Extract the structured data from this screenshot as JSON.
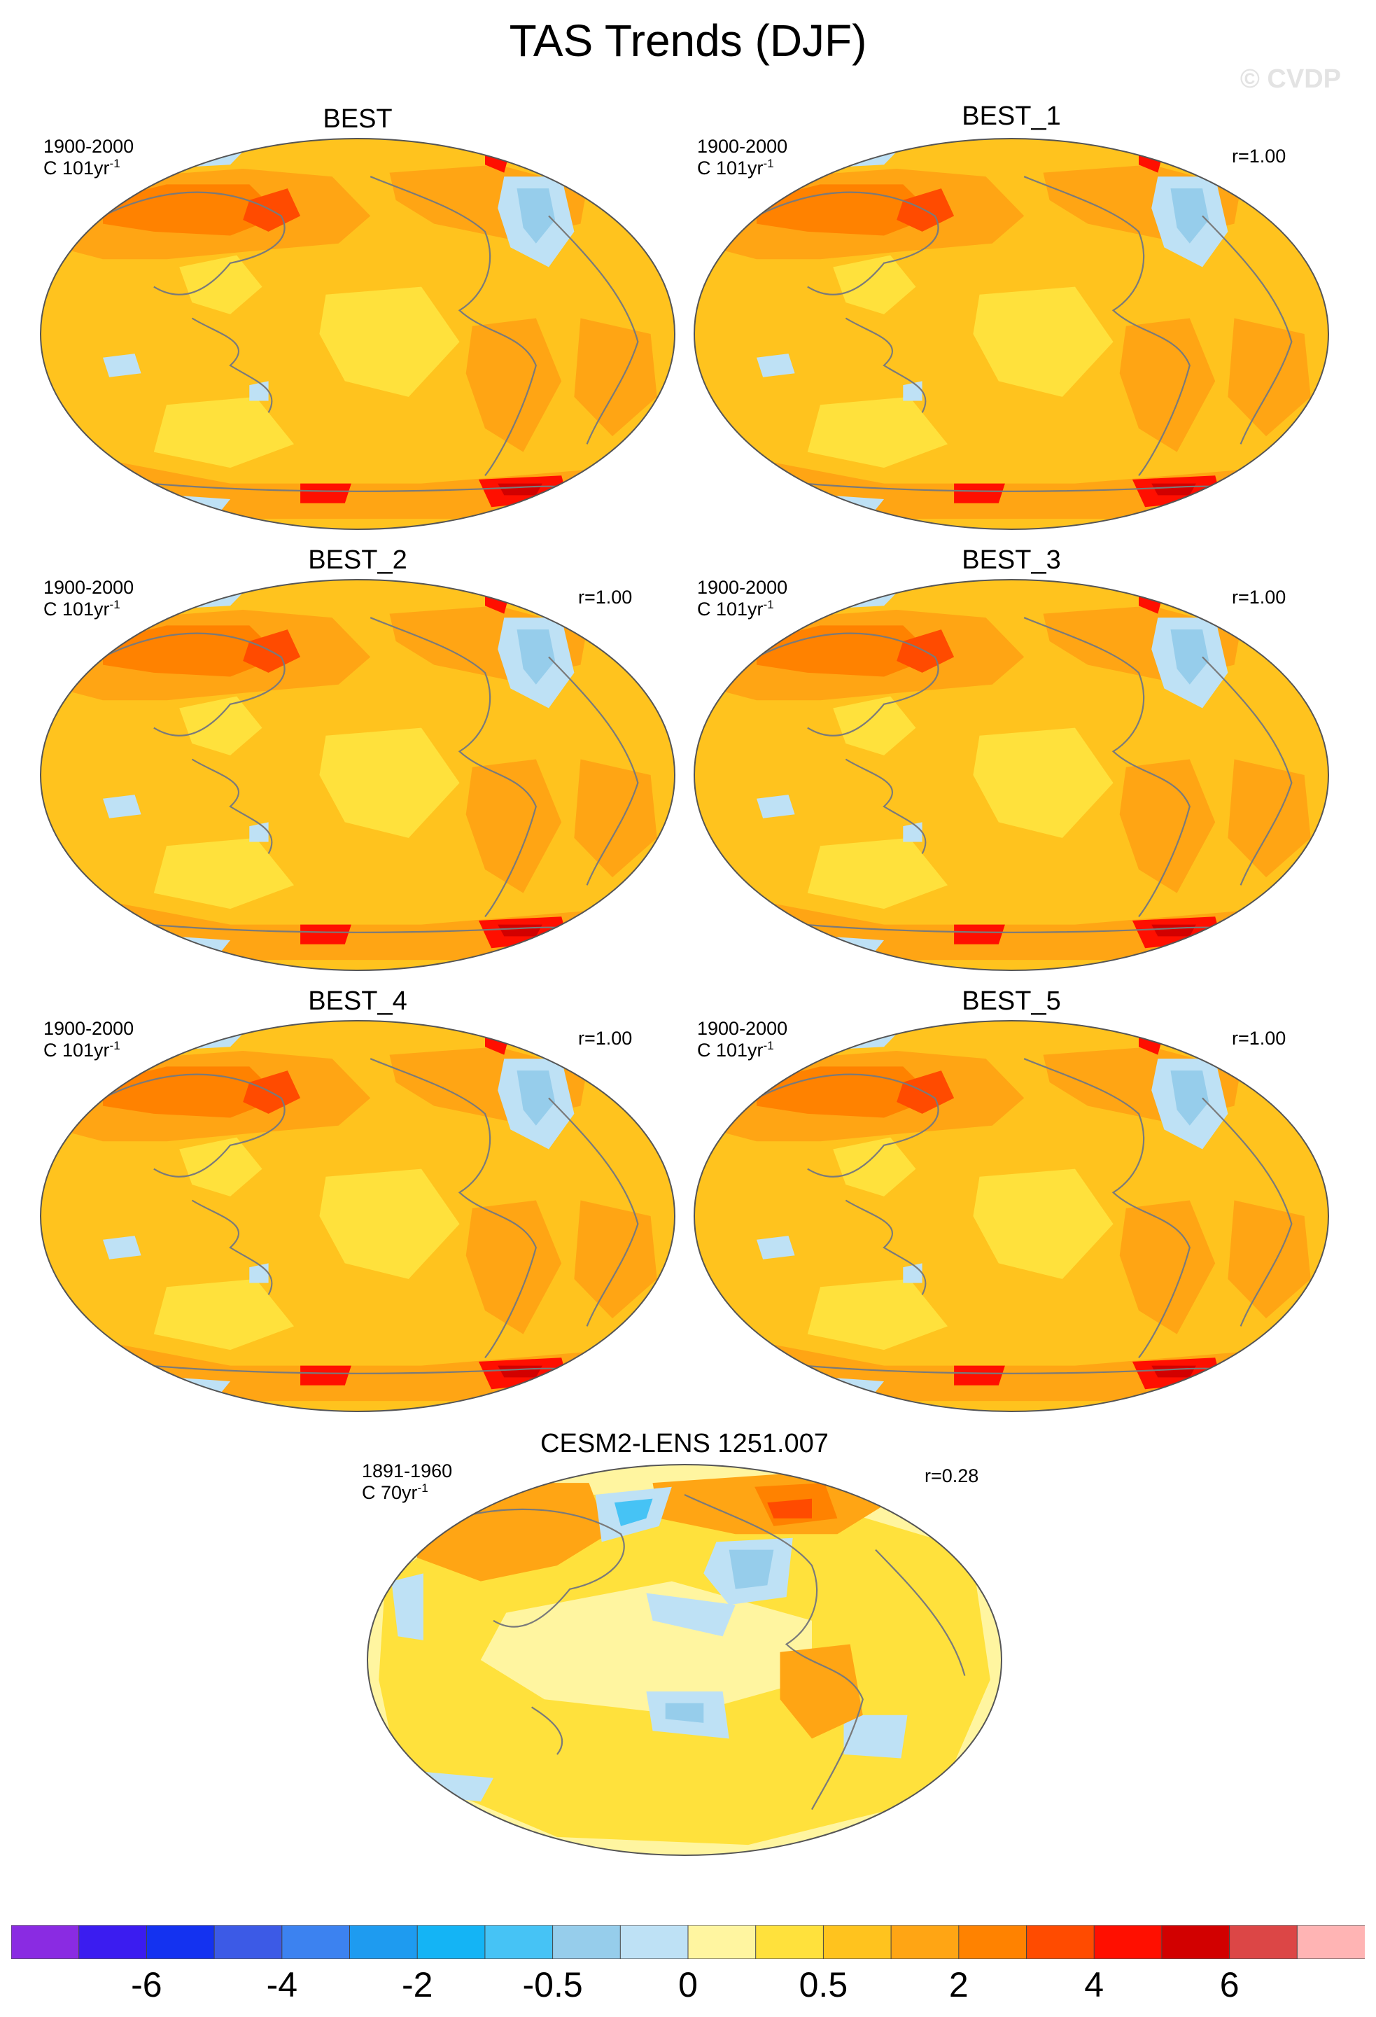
{
  "title": "TAS Trends (DJF)",
  "watermark": "© CVDP",
  "panels": [
    {
      "title": "BEST",
      "period": "1900-2000",
      "units": "C 101yr",
      "units_sup": "-1",
      "r": "",
      "variant": "obs"
    },
    {
      "title": "BEST_1",
      "period": "1900-2000",
      "units": "C 101yr",
      "units_sup": "-1",
      "r": "r=1.00",
      "variant": "obs"
    },
    {
      "title": "BEST_2",
      "period": "1900-2000",
      "units": "C 101yr",
      "units_sup": "-1",
      "r": "r=1.00",
      "variant": "obs"
    },
    {
      "title": "BEST_3",
      "period": "1900-2000",
      "units": "C 101yr",
      "units_sup": "-1",
      "r": "r=1.00",
      "variant": "obs"
    },
    {
      "title": "BEST_4",
      "period": "1900-2000",
      "units": "C 101yr",
      "units_sup": "-1",
      "r": "r=1.00",
      "variant": "obs"
    },
    {
      "title": "BEST_5",
      "period": "1900-2000",
      "units": "C 101yr",
      "units_sup": "-1",
      "r": "r=1.00",
      "variant": "obs"
    },
    {
      "title": "CESM2-LENS 1251.007",
      "period": "1891-1960",
      "units": "C 70yr",
      "units_sup": "-1",
      "r": "r=0.28",
      "variant": "model"
    }
  ],
  "colorbar": {
    "colors": [
      "#8a2be2",
      "#3b1cf0",
      "#1432f0",
      "#3c5ae6",
      "#3c82f0",
      "#1e9bf0",
      "#14b4f5",
      "#46c3f5",
      "#96cdeb",
      "#bee1f5",
      "#fff5a0",
      "#ffe13c",
      "#ffc31e",
      "#ffa514",
      "#ff8200",
      "#ff4b00",
      "#ff0f00",
      "#d20000",
      "#dc4646",
      "#ffb4b4"
    ],
    "labels": [
      {
        "text": "-6",
        "boundary": 2
      },
      {
        "text": "-4",
        "boundary": 4
      },
      {
        "text": "-2",
        "boundary": 6
      },
      {
        "text": "-0.5",
        "boundary": 8
      },
      {
        "text": "0",
        "boundary": 10
      },
      {
        "text": "0.5",
        "boundary": 12
      },
      {
        "text": "2",
        "boundary": 14
      },
      {
        "text": "4",
        "boundary": 16
      },
      {
        "text": "6",
        "boundary": 18
      }
    ]
  },
  "map_colors": {
    "base_obs": "#ffc31e",
    "base_model": "#fff5a0",
    "pale_yellow": "#fff5a0",
    "yellow": "#ffe13c",
    "orange": "#ffa514",
    "dark_orange": "#ff8200",
    "red_orange": "#ff4b00",
    "red": "#ff0f00",
    "dark_red": "#d20000",
    "light_blue": "#bee1f5",
    "mid_blue": "#96cdeb",
    "blue": "#46c3f5",
    "deep_blue": "#3c82f0",
    "coast": "#7a7a7a",
    "outline": "#555555"
  }
}
